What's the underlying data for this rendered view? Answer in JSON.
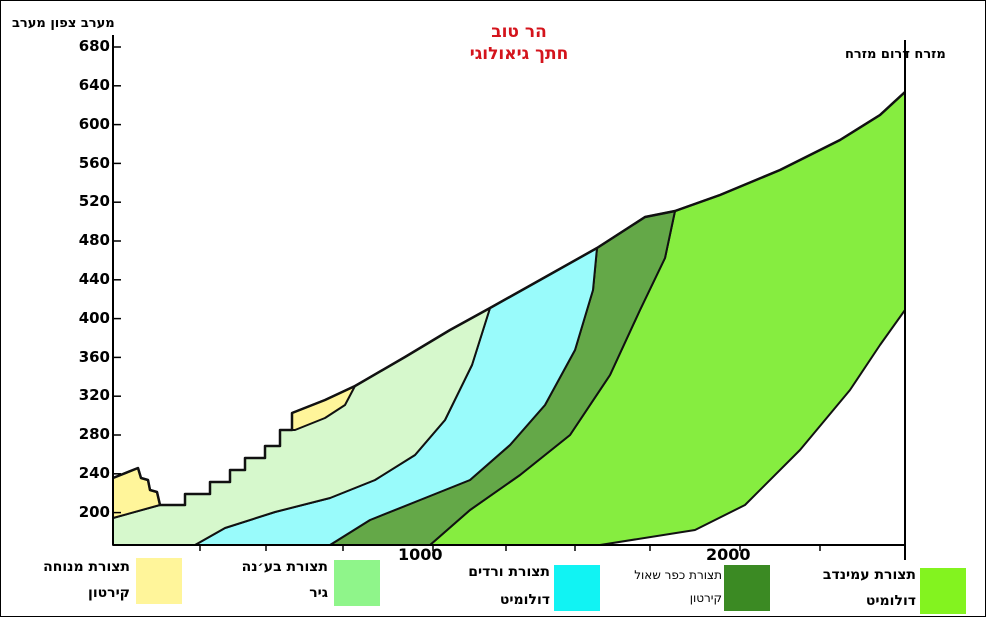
{
  "title": {
    "line1": "הר טוב",
    "line2": "חתך גיאולוגי"
  },
  "corners": {
    "west_label": "מערב צפון מערב",
    "east_label": "מזרח דרום מזרח"
  },
  "axes": {
    "y_ticks": [
      "680",
      "640",
      "600",
      "560",
      "520",
      "480",
      "440",
      "400",
      "360",
      "320",
      "280",
      "240",
      "200"
    ],
    "x_ticks": [
      "1000",
      "2000"
    ]
  },
  "colors": {
    "menuha": "#fff59a",
    "bina": "#d6f8cc",
    "vradim": "#99fbfb",
    "kfar_shaul": "#64a848",
    "aminadav": "#86ed40",
    "outline": "#111111",
    "title": "#d4141c"
  },
  "legend": [
    {
      "key": "menuha",
      "line1": "תצורת מנוחה",
      "line2": "קירטון",
      "swatch": "#fff59a"
    },
    {
      "key": "bina",
      "line1": "תצורת בע׳נה",
      "line2": "גיר",
      "swatch": "#8ff58a"
    },
    {
      "key": "vradim",
      "line1": "תצורת ורדים",
      "line2": "דולומיט",
      "swatch": "#11f3f3"
    },
    {
      "key": "kfar_shaul",
      "line1": "תצורת כפר שאול",
      "line2": "קירטון",
      "swatch": "#3b8a23"
    },
    {
      "key": "aminadav",
      "line1": "תצורת עמינדב",
      "line2": "דולומיט",
      "swatch": "#83f31f"
    }
  ]
}
